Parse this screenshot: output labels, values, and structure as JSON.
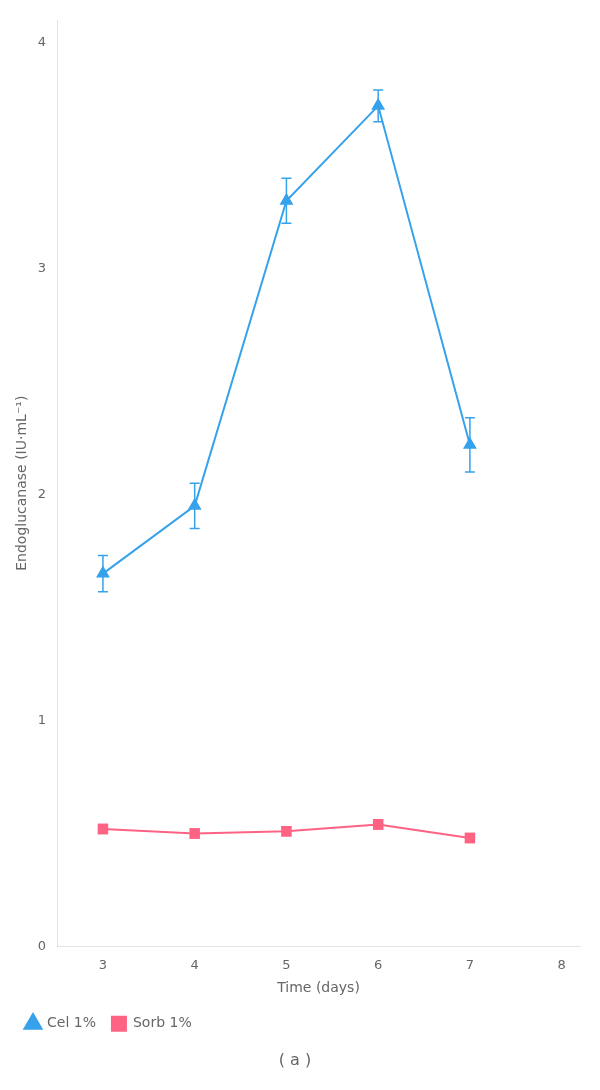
{
  "chart_data": {
    "type": "line",
    "title": "( a )",
    "xlabel": "Time (days)",
    "ylabel": "Endoglucanase (IU·mL⁻¹)",
    "x": [
      3,
      4,
      5,
      6,
      7
    ],
    "series": [
      {
        "name": "Cel 1%",
        "values": [
          1.65,
          1.95,
          3.3,
          3.72,
          2.22
        ],
        "yerr": [
          0.08,
          0.1,
          0.1,
          0.07,
          0.12
        ],
        "marker": "triangle",
        "line_style": "solid"
      },
      {
        "name": "Sorb 1%",
        "values": [
          0.52,
          0.5,
          0.51,
          0.54,
          0.48
        ],
        "yerr": [
          0.02,
          0.02,
          0.02,
          0.02,
          0.02
        ],
        "marker": "square",
        "line_style": "solid"
      }
    ],
    "xlim": [
      2.5,
      8.2
    ],
    "xticks": [
      3,
      4,
      5,
      6,
      7,
      8
    ],
    "ylim": [
      0,
      4.1
    ],
    "yticks": [
      0,
      1,
      2,
      3,
      4
    ],
    "grid": false,
    "legend": "bottom"
  }
}
